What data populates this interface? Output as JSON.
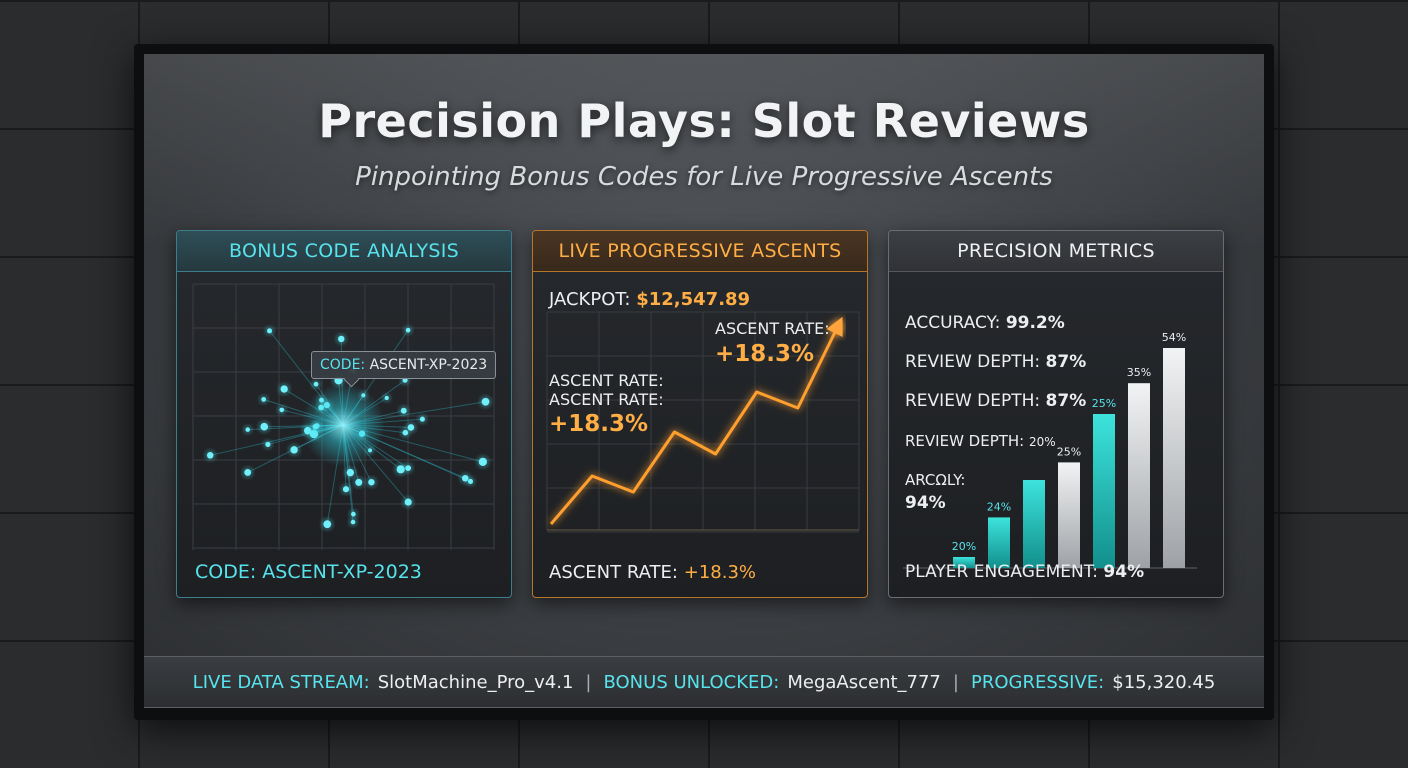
{
  "title": "Precision Plays: Slot Reviews",
  "subtitle": "Pinpointing Bonus Codes for Live Progressive Ascents",
  "panel_bonus": {
    "heading": "BONUS CODE ANALYSIS",
    "tag_key": "CODE:",
    "tag_value": "ASCENT-XP-2023",
    "footer": "CODE: ASCENT-XP-2023"
  },
  "panel_progressive": {
    "heading": "LIVE PROGRESSIVE ASCENTS",
    "jackpot_label": "JACKPOT:",
    "jackpot_value": "$12,547.89",
    "rate_label_top": "ASCENT RATE:",
    "rate_value_top": "+18.3%",
    "rate_label_left_1": "ASCENT RATE:",
    "rate_label_left_2": "ASCENT RATE:",
    "rate_value_left": "+18.3%",
    "footer_label": "ASCENT RATE:",
    "footer_value": "+18.3%",
    "line_series": [
      0,
      24,
      16,
      46,
      35,
      66,
      58,
      100
    ]
  },
  "panel_metrics": {
    "heading": "PRECISION METRICS",
    "metrics": [
      {
        "label": "ACCURACY:",
        "value": "99.2%"
      },
      {
        "label": "REVIEW DEPTH:",
        "value": "87%"
      },
      {
        "label": "REVIEW DEPTH:",
        "value": "87%"
      },
      {
        "label": "REVIEW DEPTH:",
        "value": "20%"
      }
    ],
    "side_label": "ARCΩLY:",
    "side_value": "94%",
    "footer_label": "PLAYER ENGAGEMENT:",
    "footer_value": "94%",
    "bars": [
      {
        "label": "20%",
        "value": 5,
        "color": "teal"
      },
      {
        "label": "24%",
        "value": 23,
        "color": "teal"
      },
      {
        "label": "",
        "value": 40,
        "color": "teal"
      },
      {
        "label": "25%",
        "value": 48,
        "color": "silver"
      },
      {
        "label": "25%",
        "value": 70,
        "color": "teal"
      },
      {
        "label": "35%",
        "value": 84,
        "color": "silver"
      },
      {
        "label": "54%",
        "value": 100,
        "color": "silver"
      }
    ]
  },
  "status_strip": {
    "stream_label": "LIVE DATA STREAM:",
    "stream_value": "SlotMachine_Pro_v4.1",
    "bonus_label": "BONUS UNLOCKED:",
    "bonus_value": "MegaAscent_777",
    "progressive_label": "PROGRESSIVE:",
    "progressive_value": "$15,320.45",
    "separator": "|"
  },
  "colors": {
    "cyan": "#57e3ec",
    "orange": "#ffae45",
    "teal_bar": "#1fc9c4",
    "silver_bar": "#d9dbde"
  }
}
